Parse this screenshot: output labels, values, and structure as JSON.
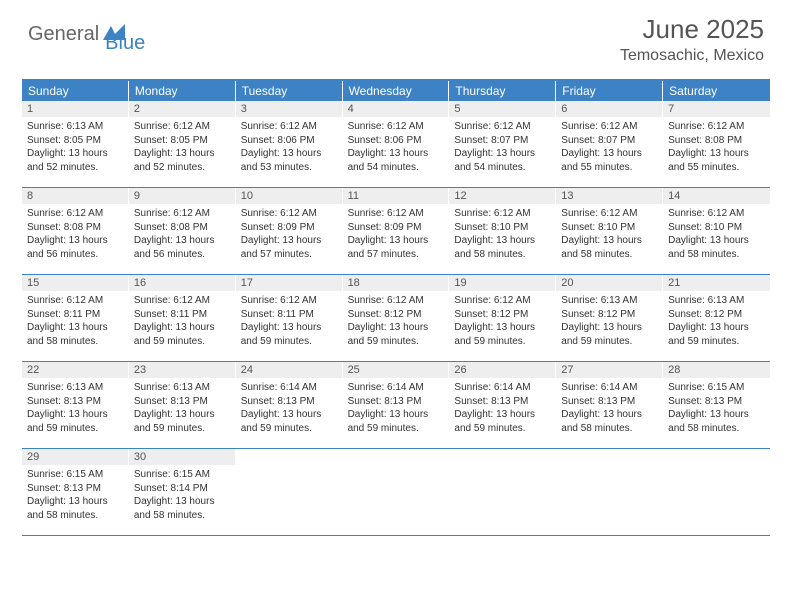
{
  "logo": {
    "text1": "General",
    "text2": "Blue"
  },
  "title": "June 2025",
  "location": "Temosachic, Mexico",
  "colors": {
    "accent": "#3d82c4",
    "header_bg": "#3d82c4",
    "daynum_bg": "#eeeeee",
    "text": "#333333",
    "title_text": "#555555"
  },
  "weekdays": [
    "Sunday",
    "Monday",
    "Tuesday",
    "Wednesday",
    "Thursday",
    "Friday",
    "Saturday"
  ],
  "weeks": [
    [
      {
        "n": "1",
        "sunrise": "Sunrise: 6:13 AM",
        "sunset": "Sunset: 8:05 PM",
        "daylight": "Daylight: 13 hours and 52 minutes."
      },
      {
        "n": "2",
        "sunrise": "Sunrise: 6:12 AM",
        "sunset": "Sunset: 8:05 PM",
        "daylight": "Daylight: 13 hours and 52 minutes."
      },
      {
        "n": "3",
        "sunrise": "Sunrise: 6:12 AM",
        "sunset": "Sunset: 8:06 PM",
        "daylight": "Daylight: 13 hours and 53 minutes."
      },
      {
        "n": "4",
        "sunrise": "Sunrise: 6:12 AM",
        "sunset": "Sunset: 8:06 PM",
        "daylight": "Daylight: 13 hours and 54 minutes."
      },
      {
        "n": "5",
        "sunrise": "Sunrise: 6:12 AM",
        "sunset": "Sunset: 8:07 PM",
        "daylight": "Daylight: 13 hours and 54 minutes."
      },
      {
        "n": "6",
        "sunrise": "Sunrise: 6:12 AM",
        "sunset": "Sunset: 8:07 PM",
        "daylight": "Daylight: 13 hours and 55 minutes."
      },
      {
        "n": "7",
        "sunrise": "Sunrise: 6:12 AM",
        "sunset": "Sunset: 8:08 PM",
        "daylight": "Daylight: 13 hours and 55 minutes."
      }
    ],
    [
      {
        "n": "8",
        "sunrise": "Sunrise: 6:12 AM",
        "sunset": "Sunset: 8:08 PM",
        "daylight": "Daylight: 13 hours and 56 minutes."
      },
      {
        "n": "9",
        "sunrise": "Sunrise: 6:12 AM",
        "sunset": "Sunset: 8:08 PM",
        "daylight": "Daylight: 13 hours and 56 minutes."
      },
      {
        "n": "10",
        "sunrise": "Sunrise: 6:12 AM",
        "sunset": "Sunset: 8:09 PM",
        "daylight": "Daylight: 13 hours and 57 minutes."
      },
      {
        "n": "11",
        "sunrise": "Sunrise: 6:12 AM",
        "sunset": "Sunset: 8:09 PM",
        "daylight": "Daylight: 13 hours and 57 minutes."
      },
      {
        "n": "12",
        "sunrise": "Sunrise: 6:12 AM",
        "sunset": "Sunset: 8:10 PM",
        "daylight": "Daylight: 13 hours and 58 minutes."
      },
      {
        "n": "13",
        "sunrise": "Sunrise: 6:12 AM",
        "sunset": "Sunset: 8:10 PM",
        "daylight": "Daylight: 13 hours and 58 minutes."
      },
      {
        "n": "14",
        "sunrise": "Sunrise: 6:12 AM",
        "sunset": "Sunset: 8:10 PM",
        "daylight": "Daylight: 13 hours and 58 minutes."
      }
    ],
    [
      {
        "n": "15",
        "sunrise": "Sunrise: 6:12 AM",
        "sunset": "Sunset: 8:11 PM",
        "daylight": "Daylight: 13 hours and 58 minutes."
      },
      {
        "n": "16",
        "sunrise": "Sunrise: 6:12 AM",
        "sunset": "Sunset: 8:11 PM",
        "daylight": "Daylight: 13 hours and 59 minutes."
      },
      {
        "n": "17",
        "sunrise": "Sunrise: 6:12 AM",
        "sunset": "Sunset: 8:11 PM",
        "daylight": "Daylight: 13 hours and 59 minutes."
      },
      {
        "n": "18",
        "sunrise": "Sunrise: 6:12 AM",
        "sunset": "Sunset: 8:12 PM",
        "daylight": "Daylight: 13 hours and 59 minutes."
      },
      {
        "n": "19",
        "sunrise": "Sunrise: 6:12 AM",
        "sunset": "Sunset: 8:12 PM",
        "daylight": "Daylight: 13 hours and 59 minutes."
      },
      {
        "n": "20",
        "sunrise": "Sunrise: 6:13 AM",
        "sunset": "Sunset: 8:12 PM",
        "daylight": "Daylight: 13 hours and 59 minutes."
      },
      {
        "n": "21",
        "sunrise": "Sunrise: 6:13 AM",
        "sunset": "Sunset: 8:12 PM",
        "daylight": "Daylight: 13 hours and 59 minutes."
      }
    ],
    [
      {
        "n": "22",
        "sunrise": "Sunrise: 6:13 AM",
        "sunset": "Sunset: 8:13 PM",
        "daylight": "Daylight: 13 hours and 59 minutes."
      },
      {
        "n": "23",
        "sunrise": "Sunrise: 6:13 AM",
        "sunset": "Sunset: 8:13 PM",
        "daylight": "Daylight: 13 hours and 59 minutes."
      },
      {
        "n": "24",
        "sunrise": "Sunrise: 6:14 AM",
        "sunset": "Sunset: 8:13 PM",
        "daylight": "Daylight: 13 hours and 59 minutes."
      },
      {
        "n": "25",
        "sunrise": "Sunrise: 6:14 AM",
        "sunset": "Sunset: 8:13 PM",
        "daylight": "Daylight: 13 hours and 59 minutes."
      },
      {
        "n": "26",
        "sunrise": "Sunrise: 6:14 AM",
        "sunset": "Sunset: 8:13 PM",
        "daylight": "Daylight: 13 hours and 59 minutes."
      },
      {
        "n": "27",
        "sunrise": "Sunrise: 6:14 AM",
        "sunset": "Sunset: 8:13 PM",
        "daylight": "Daylight: 13 hours and 58 minutes."
      },
      {
        "n": "28",
        "sunrise": "Sunrise: 6:15 AM",
        "sunset": "Sunset: 8:13 PM",
        "daylight": "Daylight: 13 hours and 58 minutes."
      }
    ],
    [
      {
        "n": "29",
        "sunrise": "Sunrise: 6:15 AM",
        "sunset": "Sunset: 8:13 PM",
        "daylight": "Daylight: 13 hours and 58 minutes."
      },
      {
        "n": "30",
        "sunrise": "Sunrise: 6:15 AM",
        "sunset": "Sunset: 8:14 PM",
        "daylight": "Daylight: 13 hours and 58 minutes."
      },
      null,
      null,
      null,
      null,
      null
    ]
  ]
}
